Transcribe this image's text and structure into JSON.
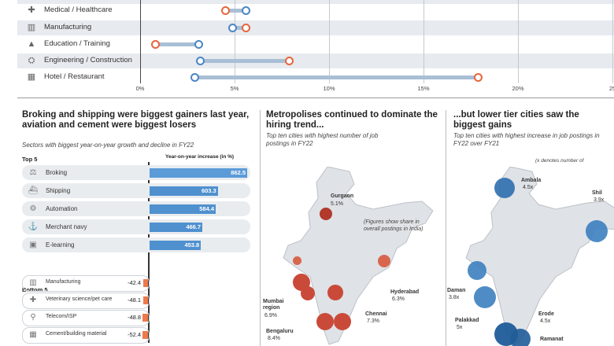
{
  "dotplot": {
    "rows": [
      {
        "label": "Medical / Healthcare",
        "icon": "medical-icon",
        "blue": 5.6,
        "orange": 4.5
      },
      {
        "label": "Manufacturing",
        "icon": "factory-icon",
        "blue": 4.9,
        "orange": 5.6
      },
      {
        "label": "Education / Training",
        "icon": "graduation-cap-icon",
        "blue": 3.1,
        "orange": 0.8
      },
      {
        "label": "Engineering / Construction",
        "icon": "construction-icon",
        "blue": 3.2,
        "orange": 7.9
      },
      {
        "label": "Hotel / Restaurant",
        "icon": "hotel-icon",
        "blue": 2.9,
        "orange": 17.9
      }
    ],
    "ticks": [
      "0%",
      "5%",
      "10%",
      "15%",
      "20%",
      "25"
    ],
    "colors": {
      "blue": "#4a86c5",
      "orange": "#e8643d"
    }
  },
  "chart_data": [
    {
      "type": "scatter",
      "categories": [
        "Medical / Healthcare",
        "Manufacturing",
        "Education / Training",
        "Engineering / Construction",
        "Hotel / Restaurant"
      ],
      "series": [
        {
          "values": [
            5.6,
            4.9,
            3.1,
            3.2,
            2.9
          ]
        },
        {
          "values": [
            4.5,
            5.6,
            0.8,
            7.9,
            17.9
          ]
        }
      ],
      "xlim": [
        0,
        25
      ]
    },
    {
      "type": "bar",
      "title": "Broking and shipping were biggest gainers last year, aviation and cement were biggest losers",
      "subtitle": "Sectors with biggest year-on-year growth and decline in FY22",
      "value_header": "Year-on-year increase (in %)",
      "top5": {
        "label": "Top 5",
        "items": [
          {
            "name": "Broking",
            "value": 862.5
          },
          {
            "name": "Shipping",
            "value": 603.3
          },
          {
            "name": "Automation",
            "value": 584.4
          },
          {
            "name": "Merchant navy",
            "value": 466.7
          },
          {
            "name": "E-learning",
            "value": 453.8
          }
        ]
      },
      "bottom5": {
        "label": "Bottom 5",
        "items": [
          {
            "name": "Manufacturing",
            "value": -42.4
          },
          {
            "name": "Veterinary science/pet care",
            "value": -48.1
          },
          {
            "name": "Telecom/ISP",
            "value": -48.8
          },
          {
            "name": "Cement/building material",
            "value": -52.4
          }
        ]
      }
    },
    {
      "type": "scatter",
      "title": "Metropolises continued to dominate the hiring trend...",
      "subtitle": "Top ten cities with highest number of job postings in FY22",
      "note": "(Figures show share in overall postings in India)",
      "cities": [
        {
          "name": "Gurgaon",
          "value": "5.1%"
        },
        {
          "name": "Hyderabad",
          "value": "6.3%"
        },
        {
          "name": "Mumbai region",
          "value": "6.9%"
        },
        {
          "name": "Chennai",
          "value": "7.3%"
        },
        {
          "name": "Bengaluru",
          "value": "8.4%"
        }
      ]
    },
    {
      "type": "scatter",
      "title": "...but lower tier cities saw the biggest gains",
      "subtitle": "Top ten cities with highest increase in job postings in FY22 over FY21",
      "note": "(x denotes number of",
      "cities": [
        {
          "name": "Ambala",
          "value": "4.5x"
        },
        {
          "name": "Shil",
          "value": "3.9x"
        },
        {
          "name": "Daman",
          "value": "3.8x"
        },
        {
          "name": "Palakkad",
          "value": "5x"
        },
        {
          "name": "Erode",
          "value": "4.5x"
        },
        {
          "name": "Ramanat",
          "value": ""
        }
      ]
    }
  ]
}
